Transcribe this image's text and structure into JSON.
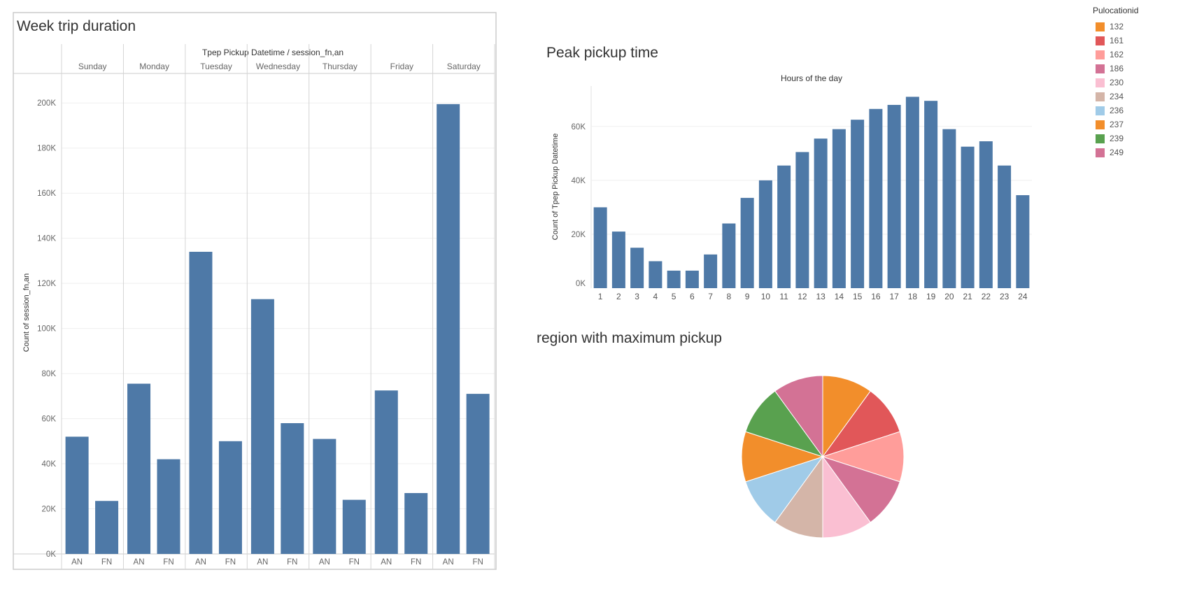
{
  "week_panel": {
    "title": "Week trip duration"
  },
  "peak_panel": {
    "title": "Peak pickup time"
  },
  "region_panel": {
    "title": "region with maximum pickup"
  },
  "legend": {
    "title": "Pulocationid",
    "items": [
      {
        "label": "132",
        "color": "#f28e2b"
      },
      {
        "label": "161",
        "color": "#e15759"
      },
      {
        "label": "162",
        "color": "#ff9d9a"
      },
      {
        "label": "186",
        "color": "#d37295"
      },
      {
        "label": "230",
        "color": "#fabfd2"
      },
      {
        "label": "234",
        "color": "#d4b5a8"
      },
      {
        "label": "236",
        "color": "#a0cbe8"
      },
      {
        "label": "237",
        "color": "#f28e2b"
      },
      {
        "label": "239",
        "color": "#59a14f"
      },
      {
        "label": "249",
        "color": "#d37295"
      }
    ]
  },
  "chart_data": [
    {
      "type": "bar",
      "title": "Week trip duration",
      "header_label": "Tpep Pickup Datetime / session_fn,an",
      "ylabel": "Count of session_fn,an",
      "ylim": [
        0,
        210000
      ],
      "yticks": [
        0,
        20000,
        40000,
        60000,
        80000,
        100000,
        120000,
        140000,
        160000,
        180000,
        200000
      ],
      "ytick_labels": [
        "0K",
        "20K",
        "40K",
        "60K",
        "80K",
        "100K",
        "120K",
        "140K",
        "160K",
        "180K",
        "200K"
      ],
      "groups": [
        "Sunday",
        "Monday",
        "Tuesday",
        "Wednesday",
        "Thursday",
        "Friday",
        "Saturday"
      ],
      "categories": [
        "AN",
        "FN"
      ],
      "values": [
        [
          52000,
          23500
        ],
        [
          75500,
          42000
        ],
        [
          134000,
          50000
        ],
        [
          113000,
          58000
        ],
        [
          51000,
          24000
        ],
        [
          72500,
          27000
        ],
        [
          199500,
          71000
        ]
      ],
      "bar_color": "#4e79a7"
    },
    {
      "type": "bar",
      "title": "Peak pickup time",
      "xlabel": "Hours of the day",
      "ylabel": "Count of Tpep Pickup Datetime",
      "ylim": [
        0,
        75000
      ],
      "yticks": [
        0,
        20000,
        40000,
        60000
      ],
      "ytick_labels": [
        "0K",
        "20K",
        "40K",
        "60K"
      ],
      "categories": [
        "1",
        "2",
        "3",
        "4",
        "5",
        "6",
        "7",
        "8",
        "9",
        "10",
        "11",
        "12",
        "13",
        "14",
        "15",
        "16",
        "17",
        "18",
        "19",
        "20",
        "21",
        "22",
        "23",
        "24"
      ],
      "values": [
        30000,
        21000,
        15000,
        10000,
        6500,
        6500,
        12500,
        24000,
        33500,
        40000,
        45500,
        50500,
        55500,
        59000,
        62500,
        66500,
        68000,
        71000,
        69500,
        59000,
        52500,
        54500,
        45500,
        34500
      ],
      "bar_color": "#4e79a7"
    },
    {
      "type": "pie",
      "title": "region with maximum pickup",
      "legend_title": "Pulocationid",
      "labels": [
        "132",
        "161",
        "162",
        "186",
        "230",
        "234",
        "236",
        "237",
        "239",
        "249"
      ],
      "values": [
        10,
        10,
        10,
        10,
        10,
        10,
        10,
        10,
        10,
        10
      ],
      "colors": [
        "#f28e2b",
        "#e15759",
        "#ff9d9a",
        "#d37295",
        "#fabfd2",
        "#d4b5a8",
        "#a0cbe8",
        "#f28e2b",
        "#59a14f",
        "#d37295"
      ]
    }
  ]
}
